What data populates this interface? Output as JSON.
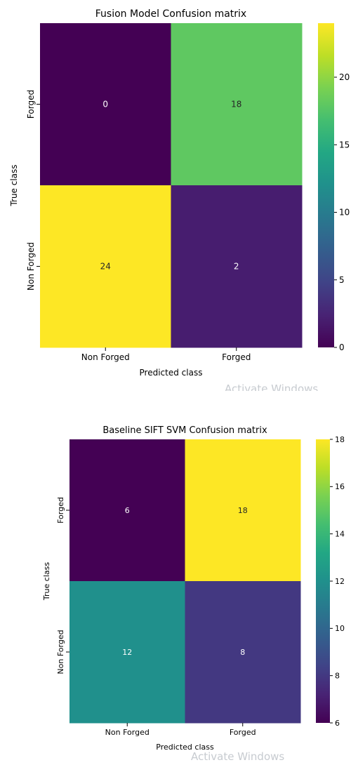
{
  "watermark": "Activate Windows",
  "chart_data": [
    {
      "type": "heatmap",
      "title": "Fusion Model Confusion matrix",
      "xlabel": "Predicted class",
      "ylabel": "True class",
      "x_categories": [
        "Non Forged",
        "Forged"
      ],
      "y_categories": [
        "Forged",
        "Non Forged"
      ],
      "values": [
        [
          0,
          18
        ],
        [
          24,
          2
        ]
      ],
      "colorbar_range": [
        0,
        24
      ],
      "colorbar_ticks": [
        "0",
        "5",
        "10",
        "15",
        "20"
      ],
      "colormap": "viridis"
    },
    {
      "type": "heatmap",
      "title": "Baseline SIFT SVM Confusion matrix",
      "xlabel": "Predicted class",
      "ylabel": "True class",
      "x_categories": [
        "Non Forged",
        "Forged"
      ],
      "y_categories": [
        "Forged",
        "Non Forged"
      ],
      "values": [
        [
          6,
          18
        ],
        [
          12,
          8
        ]
      ],
      "colorbar_range": [
        6,
        18
      ],
      "colorbar_ticks": [
        "6",
        "8",
        "10",
        "12",
        "14",
        "16",
        "18"
      ],
      "colormap": "viridis"
    }
  ]
}
